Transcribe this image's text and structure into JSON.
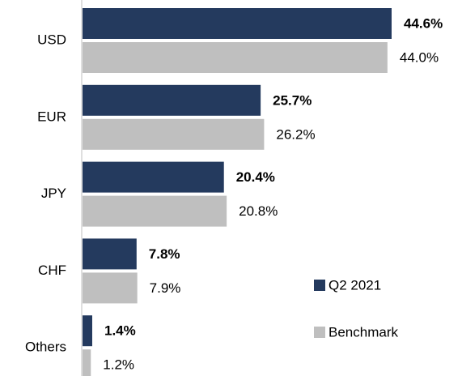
{
  "chart_data": {
    "type": "barh",
    "categories": [
      "USD",
      "EUR",
      "JPY",
      "CHF",
      "Others"
    ],
    "series": [
      {
        "name": "Q2 2021",
        "color": "#243a5e",
        "values": [
          44.6,
          25.7,
          20.4,
          7.8,
          1.4
        ],
        "value_labels": [
          "44.6%",
          "25.7%",
          "20.4%",
          "7.8%",
          "1.4%"
        ]
      },
      {
        "name": "Benchmark",
        "color": "#bfbfbf",
        "values": [
          44.0,
          26.2,
          20.8,
          7.9,
          1.2
        ],
        "value_labels": [
          "44.0%",
          "26.2%",
          "20.8%",
          "7.9%",
          "1.2%"
        ]
      }
    ]
  }
}
